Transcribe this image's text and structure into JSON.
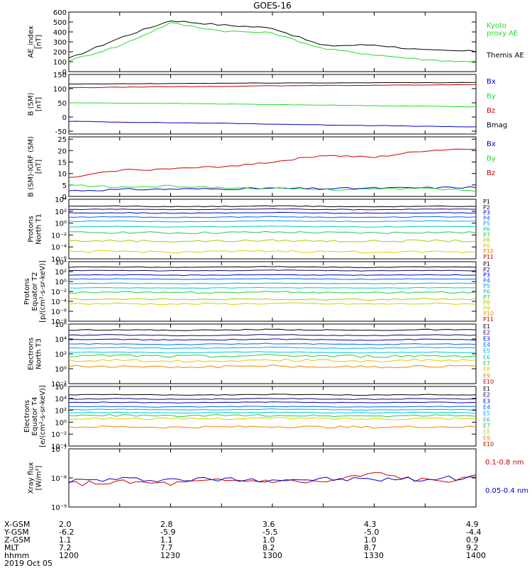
{
  "title": "GOES-16",
  "colors": {
    "black": "#000000",
    "green": "#22dd22",
    "blue": "#0000cc",
    "red": "#cc0000",
    "p_channels": [
      "#000000",
      "#220066",
      "#0000cc",
      "#0066ee",
      "#00aaee",
      "#00cccc",
      "#22cc44",
      "#aacc00",
      "#ddcc00",
      "#ee8800",
      "#cc0000"
    ],
    "e_channels": [
      "#000000",
      "#220066",
      "#0000cc",
      "#0066ee",
      "#00aaee",
      "#00cccc",
      "#22cc44",
      "#ddcc00",
      "#ee8800",
      "#cc0000"
    ]
  },
  "chart_data": [
    {
      "type": "line",
      "panel": "ae",
      "ylabel": "AE_index [nT]",
      "ylim": [
        0,
        600
      ],
      "ticks": [
        "0",
        "100",
        "200",
        "300",
        "400",
        "500",
        "600"
      ],
      "legend": [
        "Kyoto proxy AE",
        "Themis AE"
      ],
      "x": [
        "1200",
        "1215",
        "1230",
        "1245",
        "1300",
        "1315",
        "1330",
        "1345",
        "1400"
      ],
      "series": [
        {
          "name": "Themis AE",
          "values": [
            130,
            340,
            515,
            470,
            440,
            260,
            270,
            215,
            205
          ]
        },
        {
          "name": "Kyoto proxy AE",
          "values": [
            110,
            260,
            490,
            410,
            390,
            230,
            170,
            120,
            95
          ]
        }
      ]
    },
    {
      "type": "line",
      "panel": "b_sm",
      "ylabel": "B (SM) [nT]",
      "ylim": [
        -60,
        150
      ],
      "ticks": [
        "-50",
        "0",
        "50",
        "100",
        "150"
      ],
      "legend": [
        "Bx",
        "By",
        "Bz",
        "Bmag"
      ],
      "series": [
        {
          "name": "Bx",
          "values": [
            -15,
            -18,
            -20,
            -22,
            -25,
            -28,
            -30,
            -33,
            -35
          ]
        },
        {
          "name": "By",
          "values": [
            50,
            49,
            48,
            46,
            44,
            42,
            40,
            38,
            36
          ]
        },
        {
          "name": "Bz",
          "values": [
            103,
            105,
            107,
            108,
            110,
            111,
            112,
            113,
            114
          ]
        },
        {
          "name": "Bmag",
          "values": [
            116,
            117,
            118,
            119,
            120,
            120,
            121,
            121,
            122
          ]
        }
      ]
    },
    {
      "type": "line",
      "panel": "b_igrf",
      "ylabel": "B (SM)-IGRF (SM) [nT]",
      "ylim": [
        0,
        26
      ],
      "ticks": [
        "0",
        "5",
        "10",
        "15",
        "20",
        "25"
      ],
      "legend": [
        "Bx",
        "By",
        "Bz"
      ],
      "series": [
        {
          "name": "Bx",
          "values": [
            2.5,
            3,
            3.2,
            3.3,
            3.5,
            3.4,
            3.6,
            3.8,
            4
          ]
        },
        {
          "name": "By",
          "values": [
            5,
            4,
            4.5,
            3.8,
            3.5,
            3,
            3.2,
            3.5,
            2.5
          ]
        },
        {
          "name": "Bz",
          "values": [
            8,
            11.5,
            12,
            13,
            15,
            18,
            17,
            20,
            21
          ]
        }
      ]
    },
    {
      "type": "line",
      "panel": "protons_n",
      "ylabel": "Protons North T1",
      "ylim": [
        -6,
        4
      ],
      "ticks": [
        "10^-6",
        "10^-4",
        "10^-2",
        "10^0",
        "10^2",
        "10^4"
      ],
      "legend": [
        "P1",
        "P2",
        "P3",
        "P4",
        "P5",
        "P6",
        "P7",
        "P8",
        "P9",
        "P10",
        "P11"
      ],
      "channel_log_values": [
        2.8,
        2.3,
        1.7,
        1.0,
        0.3,
        -0.6,
        -1.6,
        -3.0,
        -4.8
      ]
    },
    {
      "type": "line",
      "panel": "protons_e",
      "ylabel": "Protons Equator T2 [p/(cm²-s-sr-keV)]",
      "ylim": [
        -8,
        4
      ],
      "ticks": [
        "10^-8",
        "10^-6",
        "10^-4",
        "10^-2",
        "10^0",
        "10^2",
        "10^4"
      ],
      "legend": [
        "P1",
        "P2",
        "P3",
        "P4",
        "P5",
        "P6",
        "P7",
        "P8",
        "P9",
        "P10",
        "P11"
      ],
      "channel_log_values": [
        2.9,
        2.2,
        1.3,
        0.5,
        -0.4,
        -1.3,
        -2.2,
        -3.6,
        -4.5
      ]
    },
    {
      "type": "line",
      "panel": "electrons_n",
      "ylabel": "Electrons North T3",
      "ylim": [
        -2,
        6
      ],
      "ticks": [
        "10^-2",
        "10^0",
        "10^2",
        "10^4",
        "10^6"
      ],
      "legend": [
        "E1",
        "E2",
        "E3",
        "E4",
        "E5",
        "E6",
        "E7",
        "E8",
        "E9",
        "E10"
      ],
      "channel_log_values": [
        5.2,
        4.5,
        3.9,
        3.3,
        2.8,
        2.2,
        1.7,
        1.1,
        0.3
      ]
    },
    {
      "type": "line",
      "panel": "electrons_e",
      "ylabel": "Electrons Equator T4 [e/(cm²-s-sr-keV)]",
      "ylim": [
        -4,
        6
      ],
      "ticks": [
        "10^-4",
        "10^-2",
        "10^0",
        "10^2",
        "10^4",
        "10^6"
      ],
      "legend": [
        "E1",
        "E2",
        "E3",
        "E4",
        "E5",
        "E6",
        "E7",
        "E8",
        "E9",
        "E10"
      ],
      "channel_log_values": [
        4.6,
        3.9,
        3.3,
        2.6,
        2.1,
        1.6,
        1.1,
        0.6,
        -0.8
      ]
    },
    {
      "type": "line",
      "panel": "xray",
      "ylabel": "Xray flux [W/m²]",
      "ylim": [
        -9,
        -7
      ],
      "ticks": [
        "10^-9",
        "10^-8",
        "10^-7"
      ],
      "legend": [
        "0.1-0.8 nm",
        "0.05-0.4 nm"
      ],
      "series": [
        {
          "name": "0.1-0.8 nm",
          "values": [
            -8.2,
            -8.15,
            -8.2,
            -8.1,
            -8.1,
            -8.15,
            -7.85,
            -8.1,
            -8.05
          ]
        },
        {
          "name": "0.05-0.4 nm",
          "values": [
            -8.1,
            -8.05,
            -8.05,
            -8.05,
            -8.05,
            -8.05,
            -8.05,
            -8.05,
            -7.95
          ]
        }
      ]
    }
  ],
  "legend_labels": {
    "ae": [
      "Kyoto",
      "proxy AE",
      "Themis AE"
    ],
    "b": [
      "Bx",
      "By",
      "Bz",
      "Bmag"
    ],
    "b2": [
      "Bx",
      "By",
      "Bz"
    ],
    "p": [
      "P1",
      "P2",
      "P3",
      "P4",
      "P5",
      "P6",
      "P7",
      "P8",
      "P9",
      "P10",
      "P11"
    ],
    "e": [
      "E1",
      "E2",
      "E3",
      "E4",
      "E5",
      "E6",
      "E7",
      "E8",
      "E9",
      "E10"
    ],
    "xray": [
      "0.1-0.8 nm",
      "0.05-0.4 nm"
    ]
  },
  "ylabels": {
    "ae": [
      "AE_index",
      "[nT]"
    ],
    "b": [
      "B (SM)",
      "[nT]"
    ],
    "b2": [
      "B (SM)-IGRF (SM)",
      "[nT]"
    ],
    "pn": [
      "Protons",
      "North T1"
    ],
    "pe": [
      "Protons",
      "Equator T2",
      "[p/(cm²-s-sr-keV)]"
    ],
    "en": [
      "Electrons",
      "North T3"
    ],
    "ee": [
      "Electrons",
      "Equator T4",
      "[e/(cm²-s-sr-keV)]"
    ],
    "x": [
      "Xray flux",
      "[W/m²]"
    ]
  },
  "orbit": {
    "row_labels": [
      "X-GSM",
      "Y-GSM",
      "Z-GSM",
      "MLT",
      "hhmm",
      "2019 Oct 05"
    ],
    "columns": [
      [
        "2.0",
        "-6.2",
        "1.1",
        "7.2",
        "1200"
      ],
      [
        "2.8",
        "-5.9",
        "1.1",
        "7.7",
        "1230"
      ],
      [
        "3.6",
        "-5.5",
        "1.0",
        "8.2",
        "1300"
      ],
      [
        "4.3",
        "-5.0",
        "1.0",
        "8.7",
        "1330"
      ],
      [
        "4.9",
        "-4.4",
        "0.9",
        "9.2",
        "1400"
      ]
    ]
  }
}
